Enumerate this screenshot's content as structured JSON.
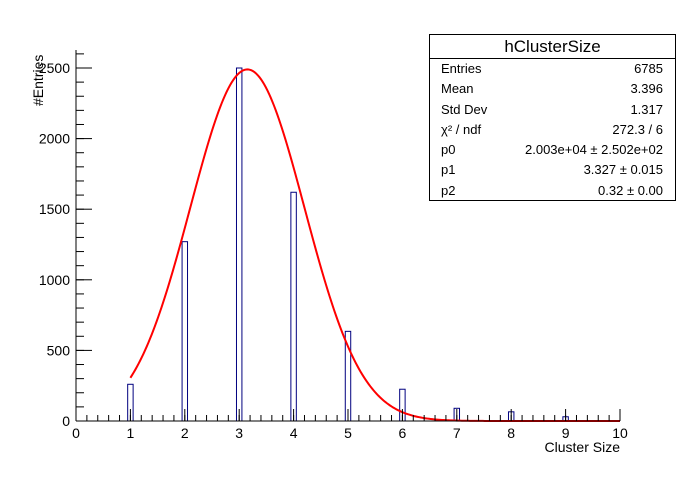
{
  "chart_data": {
    "type": "bar",
    "title": "",
    "xlabel": "Cluster Size",
    "ylabel": "#Entries",
    "xlim": [
      0,
      10
    ],
    "ylim": [
      0,
      2600
    ],
    "x_ticks": [
      0,
      1,
      2,
      3,
      4,
      5,
      6,
      7,
      8,
      9,
      10
    ],
    "y_ticks": [
      0,
      500,
      1000,
      1500,
      2000,
      2500
    ],
    "bin_width": 0.1,
    "bins": [
      {
        "x": 1,
        "value": 260
      },
      {
        "x": 2,
        "value": 1270
      },
      {
        "x": 3,
        "value": 2500
      },
      {
        "x": 4,
        "value": 1620
      },
      {
        "x": 5,
        "value": 635
      },
      {
        "x": 6,
        "value": 225
      },
      {
        "x": 7,
        "value": 90
      },
      {
        "x": 8,
        "value": 65
      },
      {
        "x": 9,
        "value": 30
      }
    ],
    "fit": {
      "function": "gaus",
      "p0": 20030,
      "p1": 3.327,
      "p2": 0.32,
      "x_range": [
        1,
        10
      ],
      "peak": 2490,
      "peak_x": 3.15,
      "sigma_display": 1.05
    },
    "colors": {
      "bars": "#00007f",
      "fit": "#ff0000",
      "axis": "#000000"
    }
  },
  "stats_box": {
    "title": "hClusterSize",
    "rows": [
      {
        "label": "Entries",
        "value": "6785"
      },
      {
        "label": "Mean",
        "value": "3.396"
      },
      {
        "label": "Std Dev",
        "value": "1.317"
      },
      {
        "label": "χ² / ndf",
        "value": "272.3 / 6"
      },
      {
        "label": "p0",
        "value": "2.003e+04 ± 2.502e+02"
      },
      {
        "label": "p1",
        "value": "3.327 ± 0.015"
      },
      {
        "label": "p2",
        "value": "0.32 ± 0.00"
      }
    ]
  }
}
